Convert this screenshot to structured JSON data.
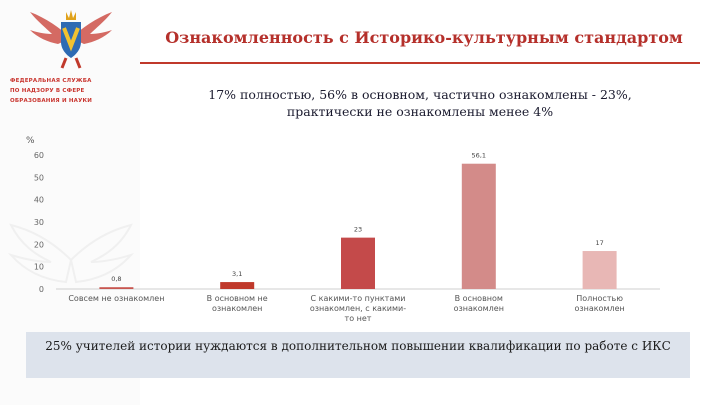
{
  "header": {
    "title": "Ознакомленность с Историко-культурным стандартом",
    "subtitle_line1": "17% полностью, 56% в основном, частично ознакомлены - 23%,",
    "subtitle_line2": "практически не ознакомлены менее 4%"
  },
  "sidebar": {
    "org_line1": "ФЕДЕРАЛЬНАЯ СЛУЖБА",
    "org_line2": "ПО НАДЗОРУ В СФЕРЕ",
    "org_line3": "ОБРАЗОВАНИЯ И НАУКИ"
  },
  "colors": {
    "accent": "#c0392b",
    "bars": [
      "#c8554f",
      "#c0392b",
      "#c44a4a",
      "#d38b89",
      "#e8b7b5"
    ]
  },
  "chart_data": {
    "type": "bar",
    "ylabel": "%",
    "ylim": [
      0,
      60
    ],
    "yticks": [
      0,
      10,
      20,
      30,
      40,
      50,
      60
    ],
    "grid": false,
    "categories": [
      [
        "Совсем не ознакомлен"
      ],
      [
        "В основном не",
        "ознакомлен"
      ],
      [
        "С какими-то пунктами",
        "ознакомлен, с какими-",
        "то нет"
      ],
      [
        "В основном",
        "ознакомлен"
      ],
      [
        "Полностью",
        "ознакомлен"
      ]
    ],
    "values": [
      0.8,
      3.1,
      23,
      56.1,
      17
    ],
    "value_labels": [
      "0,8",
      "3,1",
      "23",
      "56,1",
      "17"
    ]
  },
  "footer": {
    "note": "25% учителей истории нуждаются в дополнительном повышении квалификации по работе с ИКС"
  }
}
